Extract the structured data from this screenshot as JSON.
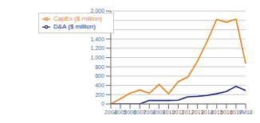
{
  "chart_data": {
    "type": "line",
    "categories": [
      "2004",
      "2005",
      "2006",
      "2007",
      "2008",
      "2009",
      "2010",
      "2011",
      "2012",
      "2013",
      "2014",
      "2015",
      "2016",
      "2017",
      "9M18"
    ],
    "series": [
      {
        "name": "CapEx ($ million)",
        "color": "#E8821A",
        "values": [
          0,
          110,
          230,
          300,
          230,
          420,
          220,
          480,
          580,
          920,
          1350,
          1820,
          1760,
          1830,
          870
        ]
      },
      {
        "name": "D&A ($ million)",
        "color": "#1A237E",
        "values": [
          0,
          0,
          0,
          0,
          75,
          75,
          75,
          80,
          155,
          165,
          185,
          220,
          270,
          380,
          290
        ]
      }
    ],
    "ylim": [
      0,
      2000
    ],
    "yticks": [
      0,
      200,
      400,
      600,
      800,
      {
        "value": 1000,
        "label": "1,000"
      },
      {
        "value": 1200,
        "label": "1,200"
      },
      {
        "value": 1400,
        "label": "1,400"
      },
      {
        "value": 1600,
        "label": "1,600"
      },
      {
        "value": 1800,
        "label": "1,800"
      },
      {
        "value": 2000,
        "label": "2,000"
      }
    ],
    "grid": true,
    "legend": "upper left"
  }
}
